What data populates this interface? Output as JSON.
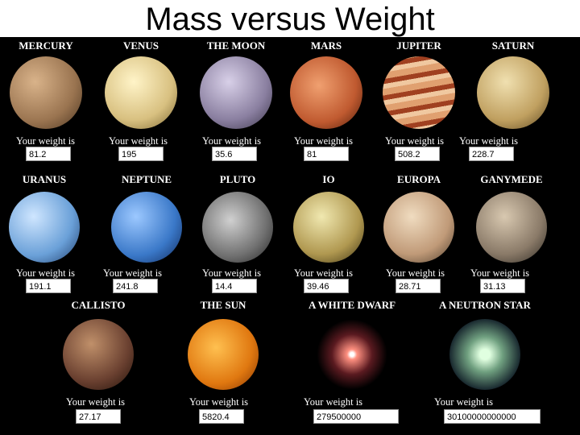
{
  "title": "Mass versus Weight",
  "bodies": [
    {
      "name": "MERCURY",
      "label": "Your weight is",
      "weight": "81.2"
    },
    {
      "name": "VENUS",
      "label": "Your weight is",
      "weight": "195"
    },
    {
      "name": "THE MOON",
      "label": "Your weight is",
      "weight": "35.6"
    },
    {
      "name": "MARS",
      "label": "Your weight is",
      "weight": "81"
    },
    {
      "name": "JUPITER",
      "label": "Your weight is",
      "weight": "508.2"
    },
    {
      "name": "SATURN",
      "label": "Your weight is",
      "weight": "228.7"
    },
    {
      "name": "URANUS",
      "label": "Your weight is",
      "weight": "191.1"
    },
    {
      "name": "NEPTUNE",
      "label": "Your weight is",
      "weight": "241.8"
    },
    {
      "name": "PLUTO",
      "label": "Your weight is",
      "weight": "14.4"
    },
    {
      "name": "IO",
      "label": "Your weight is",
      "weight": "39.46"
    },
    {
      "name": "EUROPA",
      "label": "Your weight is",
      "weight": "28.71"
    },
    {
      "name": "GANYMEDE",
      "label": "Your weight is",
      "weight": "31.13"
    },
    {
      "name": "CALLISTO",
      "label": "Your weight is",
      "weight": "27.17"
    },
    {
      "name": "THE SUN",
      "label": "Your weight is",
      "weight": "5820.4"
    },
    {
      "name": "A WHITE DWARF",
      "label": "Your weight is",
      "weight": "279500000"
    },
    {
      "name": "A NEUTRON STAR",
      "label": "Your weight is",
      "weight": "30100000000000"
    }
  ]
}
